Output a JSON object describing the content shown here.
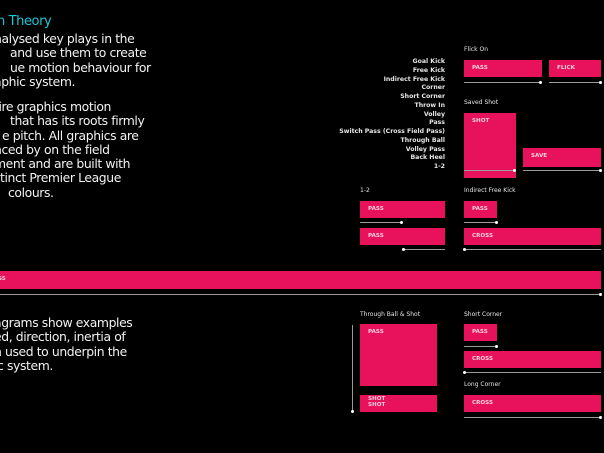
{
  "intro": {
    "title": "n Theory",
    "para1": [
      "nalysed key plays in the",
      "and use them to create",
      "ue motion behaviour for",
      "aphic system."
    ],
    "para2": [
      "tire graphics motion",
      "that has its roots firmly",
      "e pitch.  All graphics are",
      "nced by on the field",
      "ment and are built with",
      "stinct Premier League",
      "colours."
    ],
    "para3": [
      "agrams show examples",
      "ed, direction, inertia of",
      "n used to underpin the",
      "ic system."
    ]
  },
  "plays": [
    "Goal Kick",
    "Free Kick",
    "Indirect Free Kick",
    "Corner",
    "Short Corner",
    "Throw In",
    "Volley",
    "Pass",
    "Switch Pass (Cross Field Pass)",
    "Through Ball",
    "Volley Pass",
    "Back Heel",
    "1-2"
  ],
  "diagrams": {
    "flick_on": {
      "title": "Flick On",
      "a": "PASS",
      "b": "FLICK"
    },
    "saved_shot": {
      "title": "Saved Shot",
      "a": "SHOT",
      "b": "SAVE"
    },
    "one_two": {
      "title": "1-2",
      "a": "PASS",
      "b": "PASS"
    },
    "indirect_free_kick": {
      "title": "Indirect Free Kick",
      "a": "PASS",
      "b": "CROSS"
    },
    "long_bar": {
      "label": "SS"
    },
    "through_ball_shot": {
      "title": "Through Ball & Shot",
      "a": "PASS",
      "b": "SHOT\nSHOT"
    },
    "short_corner": {
      "title": "Short Corner",
      "a": "PASS",
      "b": "CROSS"
    },
    "long_corner": {
      "title": "Long Corner",
      "a": "CROSS"
    }
  },
  "colors": {
    "accent": "#e8115b",
    "title": "#19c6d6"
  }
}
